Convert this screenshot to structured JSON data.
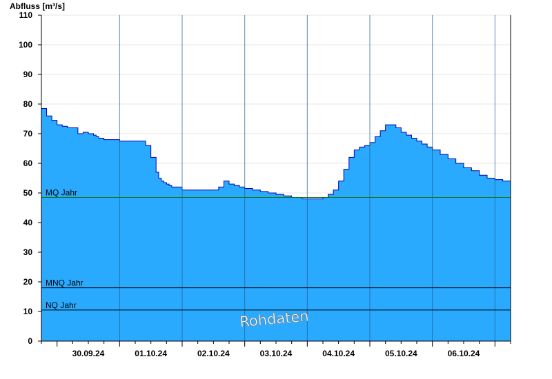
{
  "chart_data": {
    "type": "area",
    "ylabel": "Abfluss [m³/s]",
    "ylim": [
      0,
      110
    ],
    "yticks": [
      0,
      10,
      20,
      30,
      40,
      50,
      60,
      70,
      80,
      90,
      100,
      110
    ],
    "xlim": [
      "29.09.24 18:00",
      "07.10.24 06:00"
    ],
    "day_separators": [
      "01.10.24 00:00",
      "02.10.24 00:00",
      "03.10.24 00:00",
      "04.10.24 00:00",
      "05.10.24 00:00",
      "06.10.24 00:00",
      "07.10.24 00:00"
    ],
    "day_labels": [
      "30.09.24",
      "01.10.24",
      "02.10.24",
      "03.10.24",
      "04.10.24",
      "05.10.24",
      "06.10.24"
    ],
    "grid": true,
    "series": [
      {
        "x": [
          "29.09.24 18:00",
          "29.09.24 20:00",
          "29.09.24 22:00",
          "30.09.24 00:00",
          "30.09.24 02:00",
          "30.09.24 04:00",
          "30.09.24 06:00",
          "30.09.24 08:00",
          "30.09.24 10:00",
          "30.09.24 12:00",
          "30.09.24 14:00",
          "30.09.24 15:00",
          "30.09.24 16:00",
          "30.09.24 18:00",
          "30.09.24 20:00",
          "30.09.24 22:00",
          "01.10.24 00:00",
          "01.10.24 02:00",
          "01.10.24 04:00",
          "01.10.24 06:00",
          "01.10.24 08:00",
          "01.10.24 10:00",
          "01.10.24 12:00",
          "01.10.24 14:00",
          "01.10.24 15:00",
          "01.10.24 16:00",
          "01.10.24 17:00",
          "01.10.24 18:00",
          "01.10.24 19:00",
          "01.10.24 20:00",
          "01.10.24 21:00",
          "01.10.24 22:00",
          "02.10.24 00:00",
          "02.10.24 03:00",
          "02.10.24 06:00",
          "02.10.24 09:00",
          "02.10.24 12:00",
          "02.10.24 14:00",
          "02.10.24 16:00",
          "02.10.24 18:00",
          "02.10.24 20:00",
          "02.10.24 22:00",
          "03.10.24 00:00",
          "03.10.24 03:00",
          "03.10.24 06:00",
          "03.10.24 09:00",
          "03.10.24 12:00",
          "03.10.24 15:00",
          "03.10.24 18:00",
          "03.10.24 20:00",
          "03.10.24 22:00",
          "04.10.24 00:00",
          "04.10.24 02:00",
          "04.10.24 04:00",
          "04.10.24 06:00",
          "04.10.24 08:00",
          "04.10.24 10:00",
          "04.10.24 12:00",
          "04.10.24 14:00",
          "04.10.24 16:00",
          "04.10.24 18:00",
          "04.10.24 20:00",
          "04.10.24 22:00",
          "05.10.24 00:00",
          "05.10.24 02:00",
          "05.10.24 04:00",
          "05.10.24 06:00",
          "05.10.24 08:00",
          "05.10.24 10:00",
          "05.10.24 12:00",
          "05.10.24 14:00",
          "05.10.24 16:00",
          "05.10.24 18:00",
          "05.10.24 20:00",
          "05.10.24 22:00",
          "06.10.24 00:00",
          "06.10.24 03:00",
          "06.10.24 06:00",
          "06.10.24 09:00",
          "06.10.24 12:00",
          "06.10.24 15:00",
          "06.10.24 18:00",
          "06.10.24 21:00",
          "07.10.24 00:00",
          "07.10.24 03:00",
          "07.10.24 06:00"
        ],
        "values": [
          78.5,
          76,
          74.5,
          73,
          72.5,
          72,
          72,
          70,
          70.5,
          70,
          69.5,
          69,
          68.5,
          68,
          68,
          68,
          67.5,
          67.5,
          67.5,
          67.5,
          67.5,
          66,
          62,
          57,
          55,
          54,
          53.5,
          53,
          52.5,
          52,
          52,
          52,
          51,
          51,
          51,
          51,
          51,
          52,
          54,
          53,
          52.5,
          52,
          51.5,
          51,
          50.5,
          50,
          49.5,
          49,
          48.5,
          48.5,
          48,
          48,
          48,
          48,
          48.5,
          49.5,
          51,
          54,
          58,
          62,
          64.5,
          65.5,
          66,
          67,
          69,
          71,
          73,
          73,
          72,
          70.5,
          69.5,
          68.5,
          67.5,
          66.5,
          65.5,
          64.5,
          63,
          61.5,
          60,
          58.5,
          57.5,
          56,
          55,
          54.5,
          54,
          53
        ]
      }
    ],
    "reference_lines": [
      {
        "label": "MQ Jahr",
        "value": 48.5
      },
      {
        "label": "MNQ Jahr",
        "value": 18
      },
      {
        "label": "NQ Jahr",
        "value": 10.5
      }
    ],
    "watermark": "Rohdaten",
    "colors": {
      "fill": "#2aaaff",
      "outline": "#0000aa",
      "mq_line": "#007700",
      "ref_line": "#000000",
      "grid": "#e6e6e6"
    }
  }
}
